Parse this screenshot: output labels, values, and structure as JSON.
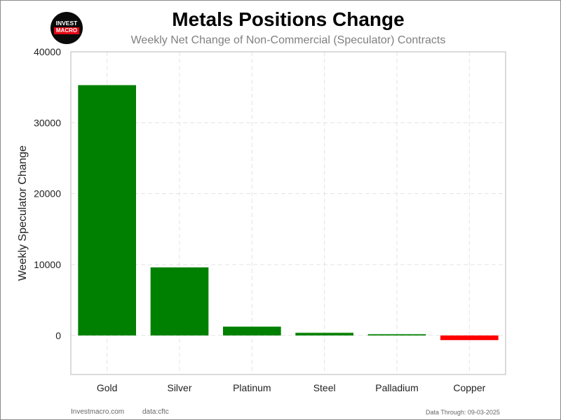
{
  "logo": {
    "text_top": "INVEST",
    "text_bottom": "MACRO"
  },
  "footer": {
    "site": "Investmacro.com",
    "source": "data:cftc",
    "data_through": "Data Through: 09-03-2025"
  },
  "chart_data": {
    "type": "bar",
    "title": "Metals Positions Change",
    "subtitle": "Weekly Net Change of Non-Commercial (Speculator) Contracts",
    "xlabel": "",
    "ylabel": "Weekly Speculator Change",
    "categories": [
      "Gold",
      "Silver",
      "Platinum",
      "Steel",
      "Palladium",
      "Copper"
    ],
    "values": [
      35300,
      9600,
      1250,
      380,
      180,
      -650
    ],
    "colors": [
      "#008000",
      "#008000",
      "#008000",
      "#008000",
      "#008000",
      "#ff0000"
    ],
    "ylim": [
      -5500,
      40000
    ],
    "yticks": [
      0,
      10000,
      20000,
      30000,
      40000
    ],
    "grid": true
  }
}
